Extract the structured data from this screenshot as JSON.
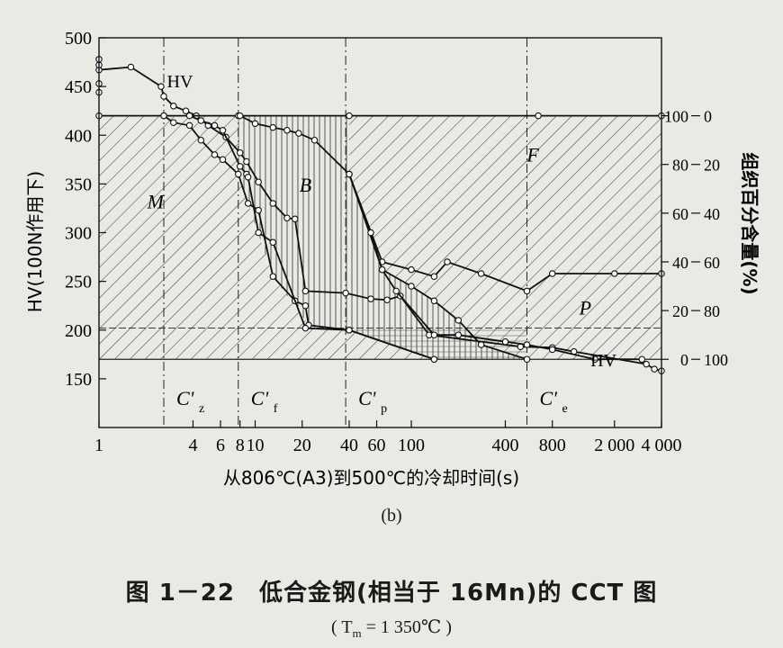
{
  "chart_data": {
    "type": "line",
    "title": "",
    "xlabel": "从806℃(A3)到500℃的冷却时间(s)",
    "ylabel_left": "HV(100N作用下)",
    "ylabel_right": "组织百分含量(%)",
    "x_scale": "log",
    "xlim": [
      1,
      4000
    ],
    "ylim_left": [
      100,
      500
    ],
    "x_ticks": [
      {
        "v": 1,
        "label": "1"
      },
      {
        "v": 4,
        "label": "4"
      },
      {
        "v": 6,
        "label": "6"
      },
      {
        "v": 8,
        "label": "8"
      },
      {
        "v": 10,
        "label": "10"
      },
      {
        "v": 20,
        "label": "20"
      },
      {
        "v": 40,
        "label": "40"
      },
      {
        "v": 60,
        "label": "60"
      },
      {
        "v": 100,
        "label": "100"
      },
      {
        "v": 400,
        "label": "400"
      },
      {
        "v": 800,
        "label": "800"
      },
      {
        "v": 2000,
        "label": "2 000"
      },
      {
        "v": 4000,
        "label": "4 000"
      }
    ],
    "y_ticks_left": [
      {
        "v": 500,
        "label": "500"
      },
      {
        "v": 450,
        "label": "450"
      },
      {
        "v": 400,
        "label": "400"
      },
      {
        "v": 350,
        "label": "350"
      },
      {
        "v": 300,
        "label": "300"
      },
      {
        "v": 250,
        "label": "250"
      },
      {
        "v": 200,
        "label": "200"
      },
      {
        "v": 150,
        "label": "150"
      }
    ],
    "y_ticks_right": [
      {
        "a": "100",
        "b": "0"
      },
      {
        "a": "80",
        "b": "20"
      },
      {
        "a": "60",
        "b": "40"
      },
      {
        "a": "40",
        "b": "60"
      },
      {
        "a": "20",
        "b": "80"
      },
      {
        "a": "0",
        "b": "100"
      }
    ],
    "critical_times": [
      {
        "v": 2.6,
        "label": "C'z"
      },
      {
        "v": 7.8,
        "label": "C'f"
      },
      {
        "v": 38,
        "label": "C'p"
      },
      {
        "v": 550,
        "label": "C'e"
      }
    ],
    "region_labels": [
      {
        "label": "M",
        "x": 2.3,
        "y": 325
      },
      {
        "label": "B",
        "x": 21,
        "y": 342
      },
      {
        "label": "F",
        "x": 600,
        "y": 373
      },
      {
        "label": "P",
        "x": 1300,
        "y": 216
      }
    ],
    "hv_labels": [
      {
        "label": "HV",
        "x": 3.3,
        "y": 449
      },
      {
        "label": "HV",
        "x": 1700,
        "y": 163
      }
    ],
    "series": [
      {
        "name": "HV",
        "points": [
          [
            1,
            467
          ],
          [
            1.6,
            470
          ],
          [
            2.5,
            450
          ],
          [
            2.6,
            440
          ],
          [
            3.0,
            430
          ],
          [
            3.6,
            425
          ],
          [
            4.2,
            420
          ],
          [
            5.0,
            410
          ],
          [
            6.5,
            398
          ],
          [
            8.0,
            382
          ],
          [
            8.8,
            373
          ],
          [
            10.5,
            352
          ],
          [
            13,
            330
          ],
          [
            16,
            315
          ],
          [
            18,
            314
          ],
          [
            21,
            240
          ],
          [
            38,
            238
          ],
          [
            55,
            232
          ],
          [
            70,
            231
          ],
          [
            85,
            235
          ],
          [
            130,
            195
          ],
          [
            500,
            183
          ],
          [
            800,
            182
          ],
          [
            1100,
            178
          ],
          [
            3200,
            165
          ],
          [
            3600,
            160
          ],
          [
            4000,
            158
          ]
        ]
      },
      {
        "name": "",
        "points": [
          [
            1,
            420
          ],
          [
            2.6,
            420
          ],
          [
            7.8,
            420
          ],
          [
            40,
            420
          ],
          [
            650,
            420
          ],
          [
            4000,
            420
          ]
        ]
      },
      {
        "name": "",
        "points": [
          [
            2.6,
            420
          ],
          [
            3.0,
            413
          ],
          [
            3.8,
            410
          ],
          [
            4.5,
            395
          ],
          [
            5.5,
            380
          ],
          [
            6.2,
            375
          ],
          [
            7.8,
            360
          ],
          [
            9.0,
            330
          ],
          [
            10.5,
            323
          ],
          [
            13,
            255
          ],
          [
            18,
            230
          ],
          [
            21,
            225
          ],
          [
            22,
            205
          ],
          [
            40,
            200
          ],
          [
            140,
            170
          ]
        ]
      },
      {
        "name": "",
        "points": [
          [
            3.8,
            420
          ],
          [
            4.5,
            415
          ],
          [
            5.5,
            410
          ],
          [
            6.2,
            405
          ],
          [
            8.0,
            368
          ],
          [
            8.8,
            360
          ],
          [
            9.0,
            357
          ],
          [
            10.5,
            300
          ],
          [
            13,
            290
          ],
          [
            21,
            202
          ],
          [
            40,
            200
          ],
          [
            140,
            170
          ]
        ]
      },
      {
        "name": "",
        "points": [
          [
            8.0,
            420
          ],
          [
            10,
            412
          ],
          [
            13,
            408
          ],
          [
            16,
            405
          ],
          [
            19,
            402
          ],
          [
            24,
            395
          ],
          [
            40,
            360
          ],
          [
            65,
            270
          ],
          [
            100,
            262
          ],
          [
            140,
            255
          ],
          [
            170,
            270
          ],
          [
            280,
            258
          ],
          [
            550,
            240
          ],
          [
            800,
            258
          ],
          [
            2000,
            258
          ],
          [
            4000,
            258
          ]
        ]
      },
      {
        "name": "",
        "points": [
          [
            40,
            360
          ],
          [
            65,
            262
          ],
          [
            100,
            245
          ],
          [
            140,
            230
          ],
          [
            200,
            210
          ],
          [
            280,
            185
          ],
          [
            550,
            170
          ]
        ]
      },
      {
        "name": "",
        "points": [
          [
            40,
            360
          ],
          [
            55,
            300
          ],
          [
            65,
            262
          ],
          [
            80,
            240
          ],
          [
            140,
            195
          ],
          [
            200,
            195
          ],
          [
            400,
            188
          ],
          [
            550,
            185
          ],
          [
            800,
            180
          ],
          [
            1500,
            170
          ],
          [
            3000,
            170
          ]
        ]
      }
    ]
  },
  "caption": "(b)",
  "figure_title": "图 1－22　低合金钢(相当于 16Mn)的 CCT 图",
  "figure_subtitle": "( T",
  "figure_subtitle_sub": "m",
  "figure_subtitle_rest": " = 1 350℃ )"
}
